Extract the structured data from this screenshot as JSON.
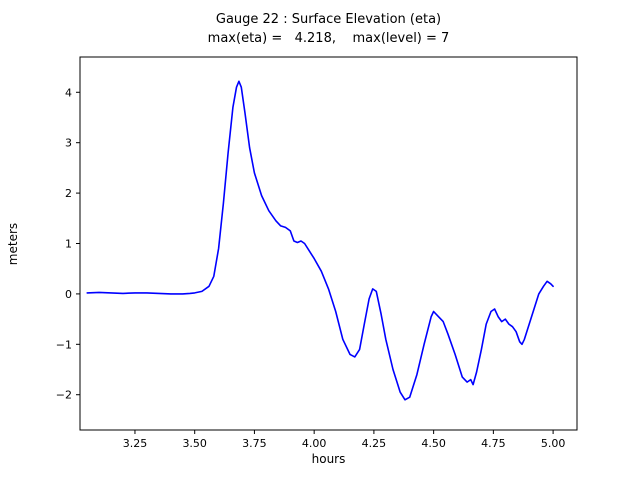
{
  "title": {
    "line1": "Gauge 22 : Surface Elevation (eta)",
    "line2": "max(eta) =   4.218,    max(level) = 7"
  },
  "chart_data": {
    "type": "line",
    "title": "Gauge 22 : Surface Elevation (eta)",
    "subtitle": "max(eta) =   4.218,    max(level) = 7",
    "max_eta": 4.218,
    "max_level": 7,
    "xlabel": "hours",
    "ylabel": "meters",
    "xlim": [
      3.02,
      5.1
    ],
    "ylim": [
      -2.7,
      4.7
    ],
    "xticks": [
      3.25,
      3.5,
      3.75,
      4.0,
      4.25,
      4.5,
      4.75,
      5.0
    ],
    "xtick_labels": [
      "3.25",
      "3.50",
      "3.75",
      "4.00",
      "4.25",
      "4.50",
      "4.75",
      "5.00"
    ],
    "yticks": [
      -2,
      -1,
      0,
      1,
      2,
      3,
      4
    ],
    "ytick_labels": [
      "−2",
      "−1",
      "0",
      "1",
      "2",
      "3",
      "4"
    ],
    "grid": false,
    "legend": "none",
    "line_color": "#0000ff",
    "spine_color": "#000000",
    "series": [
      {
        "name": "eta",
        "x": [
          3.05,
          3.1,
          3.15,
          3.2,
          3.25,
          3.3,
          3.35,
          3.4,
          3.45,
          3.48,
          3.5,
          3.53,
          3.56,
          3.58,
          3.6,
          3.62,
          3.64,
          3.66,
          3.675,
          3.685,
          3.695,
          3.71,
          3.73,
          3.75,
          3.78,
          3.81,
          3.84,
          3.86,
          3.88,
          3.9,
          3.915,
          3.93,
          3.945,
          3.96,
          3.98,
          4.0,
          4.03,
          4.06,
          4.09,
          4.12,
          4.15,
          4.17,
          4.19,
          4.21,
          4.23,
          4.245,
          4.26,
          4.28,
          4.3,
          4.33,
          4.36,
          4.38,
          4.4,
          4.43,
          4.46,
          4.49,
          4.5,
          4.52,
          4.54,
          4.56,
          4.59,
          4.62,
          4.64,
          4.655,
          4.665,
          4.68,
          4.7,
          4.72,
          4.74,
          4.755,
          4.77,
          4.785,
          4.8,
          4.815,
          4.83,
          4.845,
          4.86,
          4.87,
          4.88,
          4.9,
          4.92,
          4.94,
          4.96,
          4.975,
          4.99,
          5.0
        ],
        "y": [
          0.02,
          0.03,
          0.02,
          0.01,
          0.02,
          0.02,
          0.01,
          0.0,
          0.0,
          0.01,
          0.02,
          0.05,
          0.15,
          0.35,
          0.9,
          1.8,
          2.8,
          3.7,
          4.1,
          4.218,
          4.1,
          3.6,
          2.9,
          2.4,
          1.95,
          1.65,
          1.45,
          1.35,
          1.32,
          1.25,
          1.05,
          1.02,
          1.05,
          1.0,
          0.85,
          0.7,
          0.45,
          0.1,
          -0.35,
          -0.9,
          -1.2,
          -1.25,
          -1.1,
          -0.6,
          -0.1,
          0.1,
          0.05,
          -0.4,
          -0.9,
          -1.5,
          -1.95,
          -2.1,
          -2.05,
          -1.6,
          -1.0,
          -0.45,
          -0.35,
          -0.45,
          -0.55,
          -0.8,
          -1.2,
          -1.65,
          -1.75,
          -1.7,
          -1.8,
          -1.55,
          -1.1,
          -0.6,
          -0.35,
          -0.3,
          -0.45,
          -0.55,
          -0.5,
          -0.6,
          -0.65,
          -0.75,
          -0.95,
          -1.0,
          -0.9,
          -0.6,
          -0.3,
          0.0,
          0.15,
          0.25,
          0.2,
          0.15
        ]
      }
    ]
  }
}
